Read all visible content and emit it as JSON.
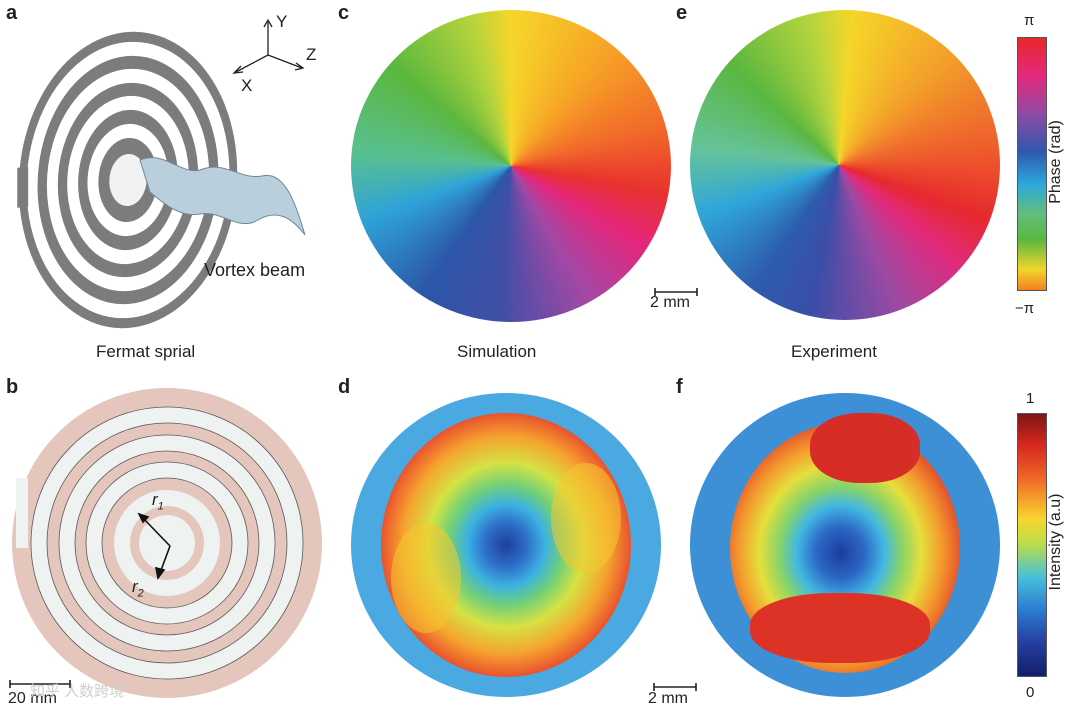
{
  "panels": {
    "a": "a",
    "b": "b",
    "c": "c",
    "d": "d",
    "e": "e",
    "f": "f"
  },
  "captions": {
    "fermat": "Fermat sprial",
    "simulation": "Simulation",
    "experiment": "Experiment"
  },
  "axes": {
    "x": "X",
    "y": "Y",
    "z": "Z"
  },
  "annotations": {
    "vortex_beam": "Vortex beam",
    "r1": "r",
    "r1_sub": "1",
    "r2": "r",
    "r2_sub": "2"
  },
  "scalebars": {
    "b": "20 mm",
    "c": "2 mm",
    "d": "2 mm"
  },
  "colorbars": {
    "phase": {
      "label": "Phase (rad)",
      "max": "π",
      "min": "−π"
    },
    "intensity": {
      "label": "Intensity (a.u)",
      "max": "1",
      "min": "0"
    }
  },
  "watermark": "知乎 人数跨境",
  "colors": {
    "spiral_gray": "#7c7c7c",
    "spiral_pink": "#e4c6bd",
    "spiral_light": "#eef2f0",
    "beam": "#b9cfdc"
  }
}
